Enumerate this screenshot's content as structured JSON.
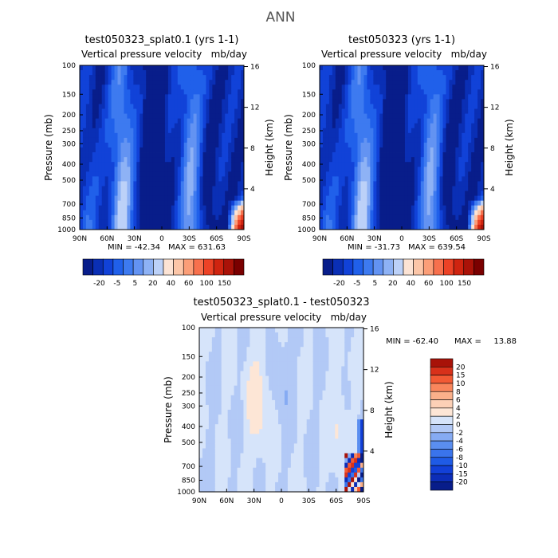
{
  "figure_title": "ANN",
  "chart_data": [
    {
      "type": "heatmap",
      "title": "test050323_splat0.1 (yrs 1-1)",
      "subtitle_left": "Vertical pressure velocity",
      "subtitle_right": "mb/day",
      "ylabel": "Pressure (mb)",
      "ylabel_right": "Height (km)",
      "x_ticks": [
        "90N",
        "60N",
        "30N",
        "0",
        "30S",
        "60S",
        "90S"
      ],
      "y_ticks": [
        "100",
        "150",
        "200",
        "250",
        "300",
        "400",
        "500",
        "700",
        "850",
        "1000"
      ],
      "y2_ticks": [
        "16",
        "12",
        "8",
        "4"
      ],
      "min_text": "MIN = -42.34",
      "max_text": "MAX = 631.63",
      "colorbar_labels": [
        "-20",
        "-5",
        "5",
        "20",
        "40",
        "60",
        "100",
        "150"
      ],
      "field": "full"
    },
    {
      "type": "heatmap",
      "title": "test050323 (yrs 1-1)",
      "subtitle_left": "Vertical pressure velocity",
      "subtitle_right": "mb/day",
      "ylabel": "Pressure (mb)",
      "ylabel_right": "Height (km)",
      "x_ticks": [
        "90N",
        "60N",
        "30N",
        "0",
        "30S",
        "60S",
        "90S"
      ],
      "y_ticks": [
        "100",
        "150",
        "200",
        "250",
        "300",
        "400",
        "500",
        "700",
        "850",
        "1000"
      ],
      "y2_ticks": [
        "16",
        "12",
        "8",
        "4"
      ],
      "min_text": "MIN = -31.73",
      "max_text": "MAX = 639.54",
      "colorbar_labels": [
        "-20",
        "-5",
        "5",
        "20",
        "40",
        "60",
        "100",
        "150"
      ],
      "field": "full"
    },
    {
      "type": "heatmap",
      "title": "test050323_splat0.1 - test050323",
      "subtitle_left": "Vertical pressure velocity",
      "subtitle_right": "mb/day",
      "ylabel": "Pressure (mb)",
      "ylabel_right": "Height (km)",
      "x_ticks": [
        "90N",
        "60N",
        "30N",
        "0",
        "30S",
        "60S",
        "90S"
      ],
      "y_ticks": [
        "100",
        "150",
        "200",
        "250",
        "300",
        "400",
        "500",
        "700",
        "850",
        "1000"
      ],
      "y2_ticks": [
        "16",
        "12",
        "8",
        "4"
      ],
      "min_text": "MIN = -62.40",
      "max_text": "MAX =",
      "max_value_text": "13.88",
      "colorbar_labels": [
        "20",
        "15",
        "10",
        "8",
        "6",
        "4",
        "2",
        "0",
        "-2",
        "-4",
        "-6",
        "-8",
        "-10",
        "-15",
        "-20"
      ],
      "field": "diff"
    }
  ],
  "colors": {
    "full_scale": [
      "#081d8a",
      "#0a2fb5",
      "#1142d8",
      "#2060ea",
      "#3d7af0",
      "#6393f2",
      "#8eb2f5",
      "#bcd1f8",
      "#fce3d4",
      "#fcc6a8",
      "#fb9e78",
      "#f7704d",
      "#ec4226",
      "#cf2410",
      "#aa1208",
      "#7a0000"
    ],
    "diff_scale": [
      "#081d8a",
      "#0c2db8",
      "#1240d8",
      "#1f5be6",
      "#3a74ec",
      "#5a8ef0",
      "#86abf3",
      "#b2c9f6",
      "#d6e4fa",
      "#fde6d6",
      "#fcd0b6",
      "#fbb08a",
      "#f9865c",
      "#f25a34",
      "#d8311a",
      "#a81208"
    ]
  }
}
